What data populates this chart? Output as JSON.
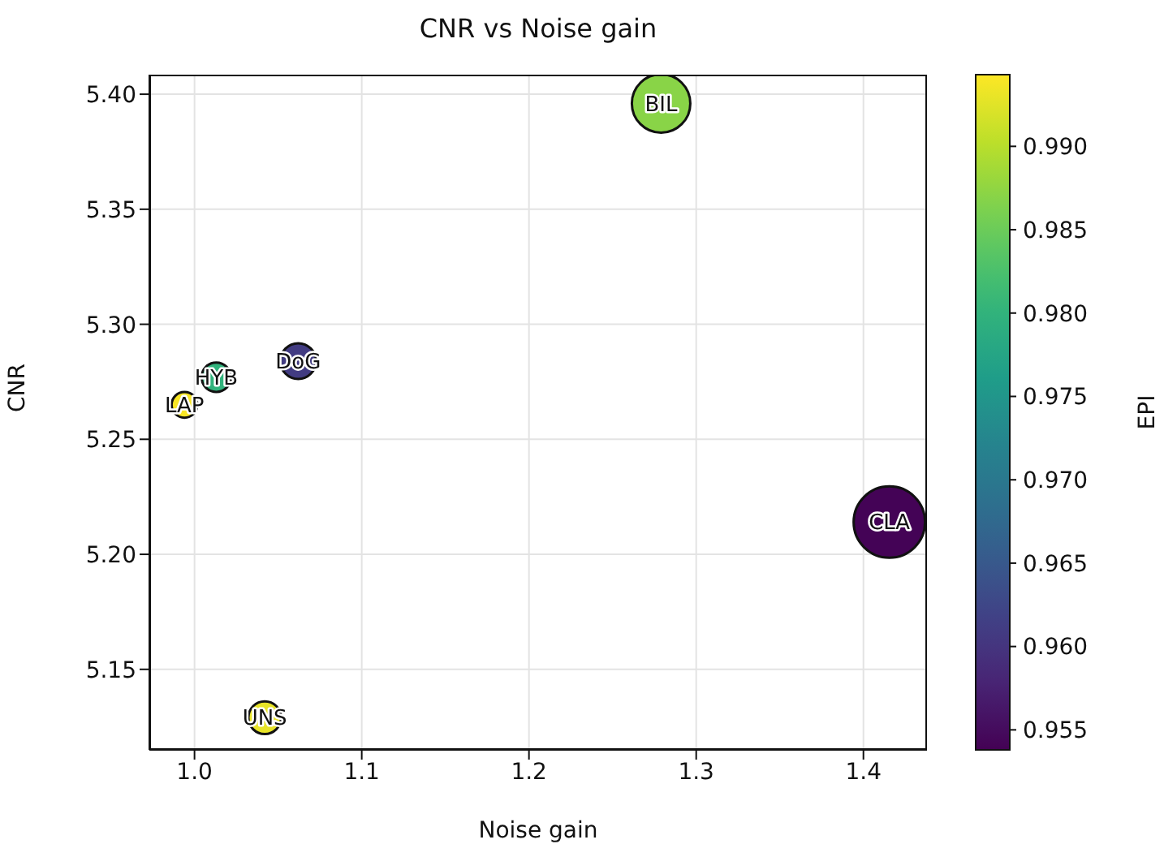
{
  "chart_data": {
    "type": "bubble",
    "title": "CNR vs Noise gain",
    "xlabel": "Noise gain",
    "ylabel": "CNR",
    "clabel": "EPI",
    "x": [
      1.279,
      1.4155,
      1.062,
      1.013,
      0.994,
      1.042
    ],
    "values": [
      5.396,
      5.214,
      5.284,
      5.277,
      5.265,
      5.129
    ],
    "sizes": [
      0.67,
      1,
      0.25,
      0.17,
      0.13,
      0.21
    ],
    "cvalues": [
      0.987,
      0.954,
      0.961,
      0.98,
      0.994,
      0.993
    ],
    "annotations": [
      {
        "text": "BIL",
        "x": 1.279,
        "y": 5.396
      },
      {
        "text": "CLA",
        "x": 1.4155,
        "y": 5.214
      },
      {
        "text": "DoG",
        "x": 1.062,
        "y": 5.284
      },
      {
        "text": "HYB",
        "x": 1.013,
        "y": 5.277
      },
      {
        "text": "LAP",
        "x": 0.994,
        "y": 5.265
      },
      {
        "text": "UNS",
        "x": 1.042,
        "y": 5.129
      }
    ],
    "xlim": [
      0.973,
      1.438
    ],
    "xticks": [
      {
        "value": 1.0,
        "label": "1.0"
      },
      {
        "value": 1.1,
        "label": "1.1"
      },
      {
        "value": 1.2,
        "label": "1.2"
      },
      {
        "value": 1.3,
        "label": "1.3"
      },
      {
        "value": 1.4,
        "label": "1.4"
      }
    ],
    "ylim": [
      5.115,
      5.4085
    ],
    "yticks": [
      {
        "value": 5.15,
        "label": "5.15"
      },
      {
        "value": 5.2,
        "label": "5.20"
      },
      {
        "value": 5.25,
        "label": "5.25"
      },
      {
        "value": 5.3,
        "label": "5.30"
      },
      {
        "value": 5.35,
        "label": "5.35"
      },
      {
        "value": 5.4,
        "label": "5.40"
      }
    ],
    "clim": [
      0.9538,
      0.9943
    ],
    "cticks": [
      {
        "value": 0.955,
        "label": "0.955"
      },
      {
        "value": 0.96,
        "label": "0.960"
      },
      {
        "value": 0.965,
        "label": "0.965"
      },
      {
        "value": 0.97,
        "label": "0.970"
      },
      {
        "value": 0.975,
        "label": "0.975"
      },
      {
        "value": 0.98,
        "label": "0.980"
      },
      {
        "value": 0.985,
        "label": "0.985"
      },
      {
        "value": 0.99,
        "label": "0.990"
      }
    ],
    "grid": true,
    "marker": "circle"
  }
}
